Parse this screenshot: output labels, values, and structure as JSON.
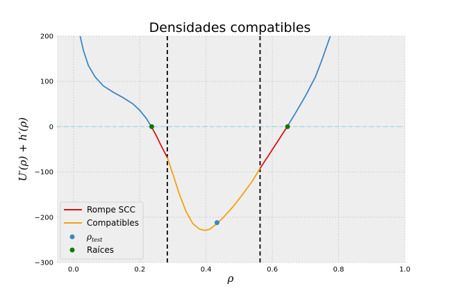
{
  "chart_data": {
    "type": "line",
    "title": "Densidades compatibles",
    "xlabel": "ρ",
    "ylabel": "U′(ρ) + h′(ρ)",
    "xlim": [
      -0.05,
      1.0
    ],
    "ylim": [
      -300,
      200
    ],
    "x_ticks": [
      "0.0",
      "0.2",
      "0.4",
      "0.6",
      "0.8",
      "1.0"
    ],
    "y_ticks": [
      "200",
      "100",
      "0",
      "−100",
      "−200",
      "−300"
    ],
    "grid": true,
    "legend_position": "lower-left",
    "curve_points": [
      [
        0.02,
        200
      ],
      [
        0.03,
        168
      ],
      [
        0.045,
        135
      ],
      [
        0.065,
        110
      ],
      [
        0.09,
        90
      ],
      [
        0.12,
        76
      ],
      [
        0.15,
        64
      ],
      [
        0.18,
        50
      ],
      [
        0.2,
        36
      ],
      [
        0.22,
        18
      ],
      [
        0.235,
        0
      ]
    ],
    "vertical_lines": [
      0.283,
      0.563
    ],
    "zero_line": 0,
    "series": [
      {
        "name": "Rompe SCC",
        "color": "#dd1111",
        "segments": [
          [
            [
              0.235,
              0
            ],
            [
              0.25,
              -20
            ],
            [
              0.265,
              -43
            ],
            [
              0.283,
              -68
            ]
          ],
          [
            [
              0.563,
              -92
            ],
            [
              0.59,
              -62
            ],
            [
              0.62,
              -28
            ],
            [
              0.645,
              0
            ]
          ]
        ]
      },
      {
        "name": "Compatibles",
        "color": "#f5a00a",
        "points": [
          [
            0.283,
            -68
          ],
          [
            0.3,
            -105
          ],
          [
            0.32,
            -150
          ],
          [
            0.34,
            -188
          ],
          [
            0.36,
            -214
          ],
          [
            0.38,
            -226
          ],
          [
            0.395,
            -229
          ],
          [
            0.41,
            -227
          ],
          [
            0.43,
            -216
          ],
          [
            0.45,
            -202
          ],
          [
            0.48,
            -178
          ],
          [
            0.51,
            -150
          ],
          [
            0.54,
            -120
          ],
          [
            0.563,
            -92
          ]
        ]
      },
      {
        "name": "ρ_test",
        "color": "#3a86c4",
        "points": [
          [
            0.433,
            -212
          ]
        ]
      },
      {
        "name": "Raíces",
        "color": "#0a7a0a",
        "points": [
          [
            0.236,
            0
          ],
          [
            0.646,
            0
          ]
        ]
      }
    ],
    "upper_branch": [
      [
        0.645,
        0
      ],
      [
        0.67,
        30
      ],
      [
        0.7,
        68
      ],
      [
        0.73,
        110
      ],
      [
        0.75,
        148
      ],
      [
        0.775,
        200
      ]
    ]
  },
  "legend": {
    "rompe": "Rompe SCC",
    "compatibles": "Compatibles",
    "rho_symbol": "ρ",
    "rho_sub": "test",
    "raices": "Raíces"
  }
}
